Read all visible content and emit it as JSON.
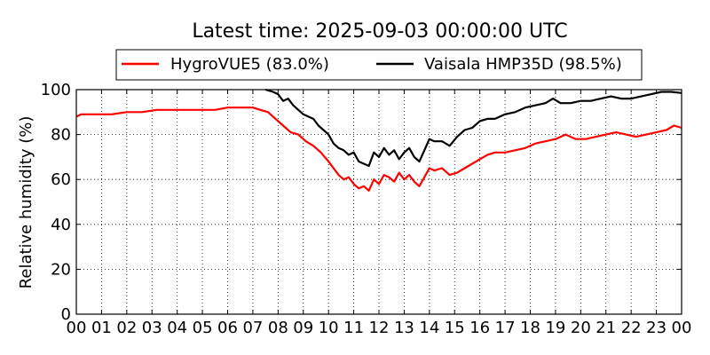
{
  "chart_data": {
    "type": "line",
    "title": "Latest time: 2025-09-03 00:00:00 UTC",
    "xlabel": "",
    "ylabel": "Relative humidity (%)",
    "xlim": [
      0,
      24
    ],
    "ylim": [
      0,
      100
    ],
    "x_ticks": [
      "00",
      "01",
      "02",
      "03",
      "04",
      "05",
      "06",
      "07",
      "08",
      "09",
      "10",
      "11",
      "12",
      "13",
      "14",
      "15",
      "16",
      "17",
      "18",
      "19",
      "20",
      "21",
      "22",
      "23",
      "00"
    ],
    "y_ticks": [
      0,
      20,
      40,
      60,
      80,
      100
    ],
    "grid": true,
    "legend_position": "top-center",
    "series": [
      {
        "name": "HygroVUE5 (83.0%)",
        "color": "#ff0000",
        "x": [
          0,
          0.2,
          0.8,
          1.4,
          2.0,
          2.6,
          3.2,
          3.8,
          4.4,
          5.0,
          5.5,
          6.0,
          6.5,
          7.0,
          7.3,
          7.6,
          7.9,
          8.2,
          8.5,
          8.8,
          9.1,
          9.4,
          9.7,
          10.0,
          10.2,
          10.4,
          10.6,
          10.8,
          11.0,
          11.2,
          11.4,
          11.6,
          11.8,
          12.0,
          12.2,
          12.4,
          12.6,
          12.8,
          13.0,
          13.2,
          13.4,
          13.6,
          13.8,
          14.0,
          14.2,
          14.5,
          14.8,
          15.1,
          15.4,
          15.7,
          16.0,
          16.3,
          16.6,
          17.0,
          17.4,
          17.8,
          18.2,
          18.6,
          19.0,
          19.4,
          19.8,
          20.2,
          20.6,
          21.0,
          21.4,
          21.8,
          22.2,
          22.6,
          23.0,
          23.4,
          23.7,
          24.0
        ],
        "y": [
          88,
          89,
          89,
          89,
          90,
          90,
          91,
          91,
          91,
          91,
          91,
          92,
          92,
          92,
          91,
          90,
          87,
          84,
          81,
          80,
          77,
          75,
          72,
          68,
          65,
          62,
          60,
          61,
          58,
          56,
          57,
          55,
          60,
          58,
          62,
          61,
          59,
          63,
          60,
          62,
          59,
          57,
          61,
          65,
          64,
          65,
          62,
          63,
          65,
          67,
          69,
          71,
          72,
          72,
          73,
          74,
          76,
          77,
          78,
          80,
          78,
          78,
          79,
          80,
          81,
          80,
          79,
          80,
          81,
          82,
          84,
          83
        ]
      },
      {
        "name": "Vaisala HMP35D (98.5%)",
        "color": "#000000",
        "x": [
          7.5,
          7.8,
          8.0,
          8.2,
          8.4,
          8.6,
          8.8,
          9.0,
          9.2,
          9.4,
          9.6,
          9.8,
          10.0,
          10.2,
          10.4,
          10.6,
          10.8,
          11.0,
          11.2,
          11.4,
          11.6,
          11.8,
          12.0,
          12.2,
          12.4,
          12.6,
          12.8,
          13.0,
          13.2,
          13.4,
          13.6,
          13.8,
          14.0,
          14.2,
          14.5,
          14.8,
          15.1,
          15.4,
          15.7,
          16.0,
          16.3,
          16.6,
          17.0,
          17.4,
          17.8,
          18.2,
          18.6,
          18.9,
          19.2,
          19.6,
          20.0,
          20.4,
          20.8,
          21.2,
          21.6,
          22.0,
          22.4,
          22.8,
          23.2,
          23.6,
          24.0
        ],
        "y": [
          100,
          99,
          98,
          95,
          96,
          93,
          91,
          89,
          88,
          87,
          84,
          82,
          80,
          76,
          74,
          73,
          71,
          72,
          68,
          67,
          66,
          72,
          70,
          74,
          71,
          73,
          69,
          72,
          74,
          70,
          68,
          73,
          78,
          77,
          77,
          75,
          79,
          82,
          83,
          86,
          87,
          87,
          89,
          90,
          92,
          93,
          94,
          96,
          94,
          94,
          95,
          95,
          96,
          97,
          96,
          96,
          97,
          98,
          99,
          99,
          98.5
        ]
      }
    ]
  }
}
